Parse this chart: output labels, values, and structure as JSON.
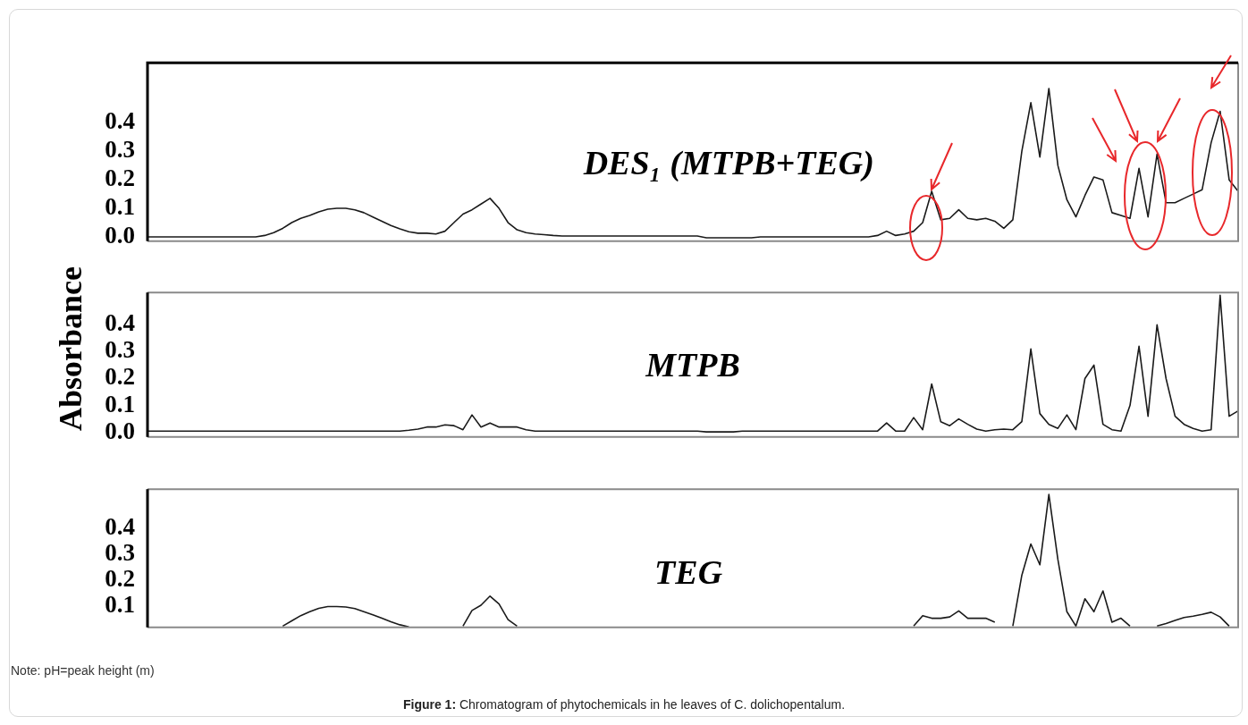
{
  "chart_data": [
    {
      "type": "line",
      "title": "DES₁ (MTPB+TEG)",
      "color": "#1a1a1a",
      "tick_labels": "y",
      "ylim": [
        -0.015,
        0.61
      ],
      "yticks": [
        {
          "value": 0,
          "label": "0.0"
        },
        0.1,
        0.2,
        0.3,
        0.4
      ],
      "categories": [
        null,
        null,
        null,
        null,
        null,
        null,
        null,
        null,
        null,
        null,
        null,
        null,
        null,
        null,
        null,
        null,
        null,
        null,
        null,
        null,
        null,
        null,
        null,
        null,
        null,
        null,
        null,
        null,
        null,
        null,
        null,
        null,
        null,
        null,
        null,
        null,
        null,
        null,
        null,
        null,
        null,
        null,
        null,
        null,
        null,
        null,
        null,
        null,
        null,
        null,
        null,
        null,
        null,
        null,
        null,
        null,
        null,
        null,
        null,
        null,
        null,
        null,
        null,
        null,
        null,
        null,
        null,
        null,
        null,
        null,
        null,
        null,
        null,
        null,
        null,
        null,
        null,
        null,
        null,
        null,
        null,
        null,
        null,
        null,
        null,
        null,
        null,
        null,
        null,
        null,
        null,
        null,
        null,
        null,
        null,
        null,
        null,
        null,
        null,
        null,
        null,
        null,
        null,
        null,
        null,
        null,
        null,
        null,
        null,
        null,
        null,
        null,
        null,
        null,
        null,
        null,
        null,
        null,
        null,
        null,
        null,
        null
      ],
      "values": [
        0,
        0,
        0,
        0,
        0,
        0,
        0,
        0,
        0,
        0,
        0,
        0,
        0,
        0.005,
        0.015,
        0.03,
        0.05,
        0.065,
        0.075,
        0.088,
        0.097,
        0.1,
        0.1,
        0.095,
        0.085,
        0.07,
        0.055,
        0.04,
        0.028,
        0.018,
        0.013,
        0.013,
        0.01,
        0.02,
        0.05,
        0.08,
        0.095,
        0.115,
        0.135,
        0.1,
        0.05,
        0.025,
        0.015,
        0.01,
        0.008,
        0.005,
        0.003,
        0.003,
        0.003,
        0.003,
        0.003,
        0.003,
        0.003,
        0.003,
        0.003,
        0.003,
        0.003,
        0.003,
        0.003,
        0.003,
        0.003,
        0.003,
        -0.003,
        -0.003,
        -0.003,
        -0.003,
        -0.003,
        -0.003,
        0,
        0,
        0,
        0,
        0,
        0,
        0,
        0,
        0,
        0,
        0,
        0,
        0,
        0.005,
        0.02,
        0.005,
        0.01,
        0.02,
        0.05,
        0.16,
        0.06,
        0.065,
        0.095,
        0.065,
        0.06,
        0.065,
        0.055,
        0.03,
        0.06,
        0.3,
        0.47,
        0.28,
        0.52,
        0.25,
        0.13,
        0.07,
        0.145,
        0.21,
        0.2,
        0.085,
        0.075,
        0.065,
        0.24,
        0.07,
        0.29,
        0.12,
        0.12,
        0.135,
        0.15,
        0.165,
        0.33,
        0.44,
        0.2,
        0.16
      ]
    },
    {
      "type": "line",
      "title": "MTPB",
      "ylabel": "Absorbance",
      "color": "#1a1a1a",
      "tick_labels": "y",
      "ylim": [
        -0.017,
        0.52
      ],
      "yticks": [
        {
          "value": 0,
          "label": "0.0"
        },
        0.1,
        0.2,
        0.3,
        0.4
      ],
      "categories": [
        null,
        null,
        null,
        null,
        null,
        null,
        null,
        null,
        null,
        null,
        null,
        null,
        null,
        null,
        null,
        null,
        null,
        null,
        null,
        null,
        null,
        null,
        null,
        null,
        null,
        null,
        null,
        null,
        null,
        null,
        null,
        null,
        null,
        null,
        null,
        null,
        null,
        null,
        null,
        null,
        null,
        null,
        null,
        null,
        null,
        null,
        null,
        null,
        null,
        null,
        null,
        null,
        null,
        null,
        null,
        null,
        null,
        null,
        null,
        null,
        null,
        null,
        null,
        null,
        null,
        null,
        null,
        null,
        null,
        null,
        null,
        null,
        null,
        null,
        null,
        null,
        null,
        null,
        null,
        null,
        null,
        null,
        null,
        null,
        null,
        null,
        null,
        null,
        null,
        null,
        null,
        null,
        null,
        null,
        null,
        null,
        null,
        null,
        null,
        null,
        null,
        null,
        null,
        null,
        null,
        null,
        null,
        null,
        null,
        null,
        null,
        null,
        null,
        null,
        null,
        null,
        null,
        null,
        null,
        null,
        null,
        null
      ],
      "values": [
        0.005,
        0.005,
        0.005,
        0.005,
        0.005,
        0.005,
        0.005,
        0.005,
        0.005,
        0.005,
        0.005,
        0.005,
        0.005,
        0.005,
        0.005,
        0.005,
        0.005,
        0.005,
        0.005,
        0.005,
        0.005,
        0.005,
        0.005,
        0.005,
        0.005,
        0.005,
        0.005,
        0.005,
        0.005,
        0.008,
        0.012,
        0.02,
        0.02,
        0.028,
        0.025,
        0.01,
        0.065,
        0.02,
        0.035,
        0.02,
        0.02,
        0.02,
        0.01,
        0.005,
        0.005,
        0.005,
        0.005,
        0.005,
        0.005,
        0.005,
        0.005,
        0.005,
        0.005,
        0.005,
        0.005,
        0.005,
        0.005,
        0.005,
        0.005,
        0.005,
        0.005,
        0.005,
        0.002,
        0.002,
        0.002,
        0.002,
        0.005,
        0.005,
        0.005,
        0.005,
        0.005,
        0.005,
        0.005,
        0.005,
        0.005,
        0.005,
        0.005,
        0.005,
        0.005,
        0.005,
        0.005,
        0.005,
        0.035,
        0.005,
        0.005,
        0.055,
        0.01,
        0.18,
        0.04,
        0.025,
        0.05,
        0.03,
        0.012,
        0.005,
        0.01,
        0.012,
        0.01,
        0.04,
        0.31,
        0.07,
        0.03,
        0.015,
        0.065,
        0.01,
        0.2,
        0.25,
        0.03,
        0.01,
        0.005,
        0.1,
        0.32,
        0.06,
        0.4,
        0.2,
        0.06,
        0.03,
        0.015,
        0.005,
        0.01,
        0.51,
        0.06,
        0.08
      ]
    },
    {
      "type": "line",
      "title": "TEG",
      "color": "#1a1a1a",
      "tick_labels": "y",
      "ylim": [
        0.02,
        0.55
      ],
      "yticks": [
        0.1,
        0.2,
        0.3,
        0.4
      ],
      "annotations": [
        "Note: pH=peak height (m)",
        "Figure 1: Chromatogram of phytochemicals in he leaves of C. dolichopentalum."
      ],
      "categories": [
        null,
        null,
        null,
        null,
        null,
        null,
        null,
        null,
        null,
        null,
        null,
        null,
        null,
        null,
        null,
        null,
        null,
        null,
        null,
        null,
        null,
        null,
        null,
        null,
        null,
        null,
        null,
        null,
        null,
        null,
        null,
        null,
        null,
        null,
        null,
        null,
        null,
        null,
        null,
        null,
        null,
        null,
        null,
        null,
        null,
        null,
        null,
        null,
        null,
        null,
        null,
        null,
        null,
        null,
        null,
        null,
        null,
        null,
        null,
        null,
        null,
        null,
        null,
        null,
        null,
        null,
        null,
        null,
        null,
        null,
        null,
        null,
        null,
        null,
        null,
        null,
        null,
        null,
        null,
        null,
        null,
        null,
        null,
        null,
        null,
        null,
        null,
        null,
        null,
        null,
        null,
        null,
        null,
        null,
        null,
        null,
        null,
        null,
        null,
        null,
        null,
        null,
        null,
        null,
        null,
        null,
        null,
        null,
        null,
        null,
        null,
        null,
        null,
        null,
        null,
        null,
        null,
        null,
        null,
        null,
        null,
        null
      ],
      "values": [
        null,
        null,
        null,
        null,
        null,
        null,
        null,
        null,
        null,
        null,
        null,
        null,
        null,
        null,
        null,
        0.025,
        0.045,
        0.065,
        0.08,
        0.093,
        0.1,
        0.1,
        0.098,
        0.092,
        0.08,
        0.068,
        0.055,
        0.042,
        0.03,
        0.022,
        null,
        null,
        null,
        null,
        null,
        0.025,
        0.085,
        0.105,
        0.14,
        0.11,
        0.05,
        0.025,
        null,
        null,
        null,
        null,
        null,
        null,
        null,
        null,
        null,
        null,
        null,
        null,
        null,
        null,
        null,
        null,
        null,
        null,
        null,
        null,
        null,
        null,
        null,
        null,
        null,
        null,
        null,
        null,
        null,
        null,
        null,
        null,
        null,
        null,
        null,
        null,
        null,
        null,
        null,
        null,
        null,
        null,
        null,
        0.025,
        0.065,
        0.055,
        0.055,
        0.06,
        0.083,
        0.055,
        0.055,
        0.055,
        0.04,
        null,
        0.025,
        0.22,
        0.34,
        0.26,
        0.53,
        0.28,
        0.08,
        0.025,
        0.13,
        0.08,
        0.16,
        0.04,
        0.055,
        0.025,
        null,
        null,
        0.025,
        0.035,
        0.047,
        0.058,
        0.063,
        0.07,
        0.078,
        0.06,
        0.025,
        null
      ]
    }
  ]
}
